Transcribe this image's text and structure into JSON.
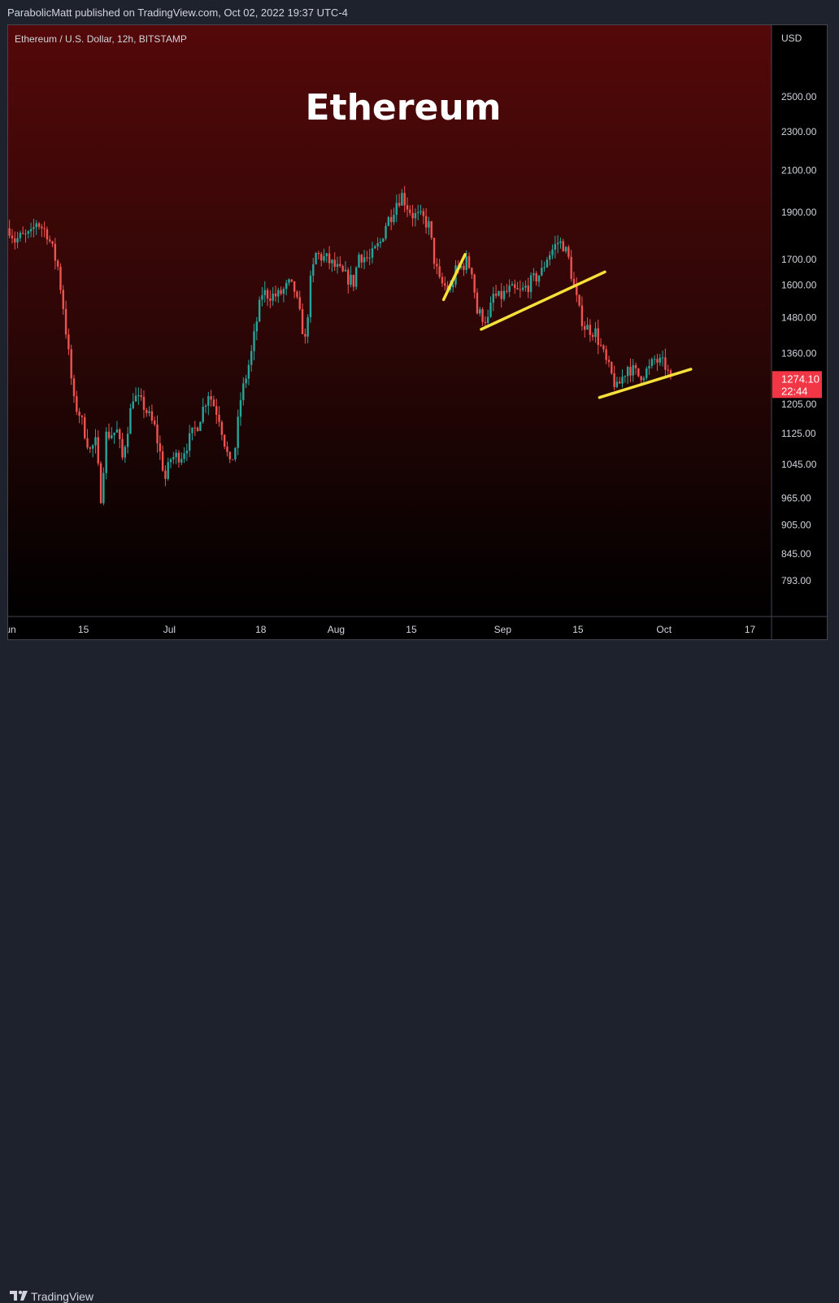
{
  "header": {
    "publish_text": "ParabolicMatt published on TradingView.com, Oct 02, 2022 19:37 UTC-4"
  },
  "footer": {
    "brand": "TradingView"
  },
  "chart_data": {
    "type": "candlestick",
    "symbol_label": "Ethereum / U.S. Dollar, 12h, BITSTAMP",
    "title": "Ethereum",
    "currency": "USD",
    "y_scale": "log",
    "ylim": [
      750,
      2850
    ],
    "y_ticks": [
      2500,
      2300,
      2100,
      1900,
      1700,
      1600,
      1480,
      1360,
      1205,
      1125,
      1045,
      965,
      905,
      845,
      793
    ],
    "y_tick_labels": [
      "2500.00",
      "2300.00",
      "2100.00",
      "1900.00",
      "1700.00",
      "1600.00",
      "1480.00",
      "1360.00",
      "1205.00",
      "1125.00",
      "1045.00",
      "965.00",
      "905.00",
      "845.00",
      "793.00"
    ],
    "x_range_days": [
      "2022-06-01",
      "2022-10-21"
    ],
    "x_ticks": [
      {
        "label": "Jun",
        "date": "2022-06-01"
      },
      {
        "label": "15",
        "date": "2022-06-15"
      },
      {
        "label": "Jul",
        "date": "2022-07-01"
      },
      {
        "label": "18",
        "date": "2022-07-18"
      },
      {
        "label": "Aug",
        "date": "2022-08-01"
      },
      {
        "label": "15",
        "date": "2022-08-15"
      },
      {
        "label": "Sep",
        "date": "2022-09-01"
      },
      {
        "label": "15",
        "date": "2022-09-15"
      },
      {
        "label": "Oct",
        "date": "2022-10-01"
      },
      {
        "label": "17",
        "date": "2022-10-17"
      }
    ],
    "last_price": {
      "label": "1274.10",
      "countdown": "22:44",
      "value": 1274.1,
      "color": "#f23645"
    },
    "candle_colors": {
      "up": "#26a69a",
      "down": "#ef5350"
    },
    "close_anchors": [
      [
        "2022-06-01",
        1830
      ],
      [
        "2022-06-02",
        1780
      ],
      [
        "2022-06-03",
        1790
      ],
      [
        "2022-06-05",
        1800
      ],
      [
        "2022-06-06",
        1860
      ],
      [
        "2022-06-08",
        1810
      ],
      [
        "2022-06-10",
        1670
      ],
      [
        "2022-06-11",
        1520
      ],
      [
        "2022-06-13",
        1210
      ],
      [
        "2022-06-14",
        1180
      ],
      [
        "2022-06-16",
        1080
      ],
      [
        "2022-06-17",
        1100
      ],
      [
        "2022-06-18",
        970
      ],
      [
        "2022-06-19",
        1120
      ],
      [
        "2022-06-21",
        1130
      ],
      [
        "2022-06-22",
        1060
      ],
      [
        "2022-06-24",
        1230
      ],
      [
        "2022-06-26",
        1200
      ],
      [
        "2022-06-28",
        1140
      ],
      [
        "2022-06-30",
        1010
      ],
      [
        "2022-07-01",
        1060
      ],
      [
        "2022-07-03",
        1070
      ],
      [
        "2022-07-06",
        1150
      ],
      [
        "2022-07-08",
        1240
      ],
      [
        "2022-07-10",
        1170
      ],
      [
        "2022-07-12",
        1040
      ],
      [
        "2022-07-13",
        1090
      ],
      [
        "2022-07-14",
        1220
      ],
      [
        "2022-07-16",
        1360
      ],
      [
        "2022-07-17",
        1470
      ],
      [
        "2022-07-18",
        1570
      ],
      [
        "2022-07-20",
        1560
      ],
      [
        "2022-07-21",
        1560
      ],
      [
        "2022-07-23",
        1600
      ],
      [
        "2022-07-24",
        1580
      ],
      [
        "2022-07-26",
        1400
      ],
      [
        "2022-07-27",
        1610
      ],
      [
        "2022-07-28",
        1720
      ],
      [
        "2022-07-30",
        1700
      ],
      [
        "2022-07-31",
        1680
      ],
      [
        "2022-08-02",
        1640
      ],
      [
        "2022-08-04",
        1610
      ],
      [
        "2022-08-05",
        1720
      ],
      [
        "2022-08-07",
        1700
      ],
      [
        "2022-08-09",
        1770
      ],
      [
        "2022-08-10",
        1850
      ],
      [
        "2022-08-11",
        1890
      ],
      [
        "2022-08-12",
        1950
      ],
      [
        "2022-08-13",
        1980
      ],
      [
        "2022-08-14",
        1930
      ],
      [
        "2022-08-15",
        1890
      ],
      [
        "2022-08-17",
        1870
      ],
      [
        "2022-08-18",
        1840
      ],
      [
        "2022-08-19",
        1700
      ],
      [
        "2022-08-20",
        1610
      ],
      [
        "2022-08-22",
        1580
      ],
      [
        "2022-08-23",
        1650
      ],
      [
        "2022-08-25",
        1690
      ],
      [
        "2022-08-26",
        1660
      ],
      [
        "2022-08-27",
        1500
      ],
      [
        "2022-08-29",
        1470
      ],
      [
        "2022-08-30",
        1560
      ],
      [
        "2022-08-31",
        1550
      ],
      [
        "2022-09-02",
        1580
      ],
      [
        "2022-09-04",
        1570
      ],
      [
        "2022-09-06",
        1610
      ],
      [
        "2022-09-08",
        1650
      ],
      [
        "2022-09-09",
        1710
      ],
      [
        "2022-09-11",
        1770
      ],
      [
        "2022-09-12",
        1760
      ],
      [
        "2022-09-13",
        1700
      ],
      [
        "2022-09-14",
        1590
      ],
      [
        "2022-09-15",
        1500
      ],
      [
        "2022-09-16",
        1450
      ],
      [
        "2022-09-18",
        1430
      ],
      [
        "2022-09-19",
        1380
      ],
      [
        "2022-09-20",
        1330
      ],
      [
        "2022-09-21",
        1290
      ],
      [
        "2022-09-22",
        1250
      ],
      [
        "2022-09-24",
        1320
      ],
      [
        "2022-09-26",
        1290
      ],
      [
        "2022-09-28",
        1310
      ],
      [
        "2022-09-29",
        1340
      ],
      [
        "2022-09-30",
        1330
      ],
      [
        "2022-10-01",
        1320
      ],
      [
        "2022-10-02",
        1274
      ]
    ],
    "drawings": [
      {
        "type": "trendline",
        "color": "#f7e03a",
        "points": [
          [
            "2022-08-21",
            1545
          ],
          [
            "2022-08-25",
            1720
          ]
        ]
      },
      {
        "type": "trendline",
        "color": "#f7e03a",
        "points": [
          [
            "2022-08-28",
            1440
          ],
          [
            "2022-09-20",
            1650
          ]
        ]
      },
      {
        "type": "trendline",
        "color": "#f7e03a",
        "points": [
          [
            "2022-09-19",
            1225
          ],
          [
            "2022-10-06",
            1310
          ]
        ]
      }
    ]
  }
}
